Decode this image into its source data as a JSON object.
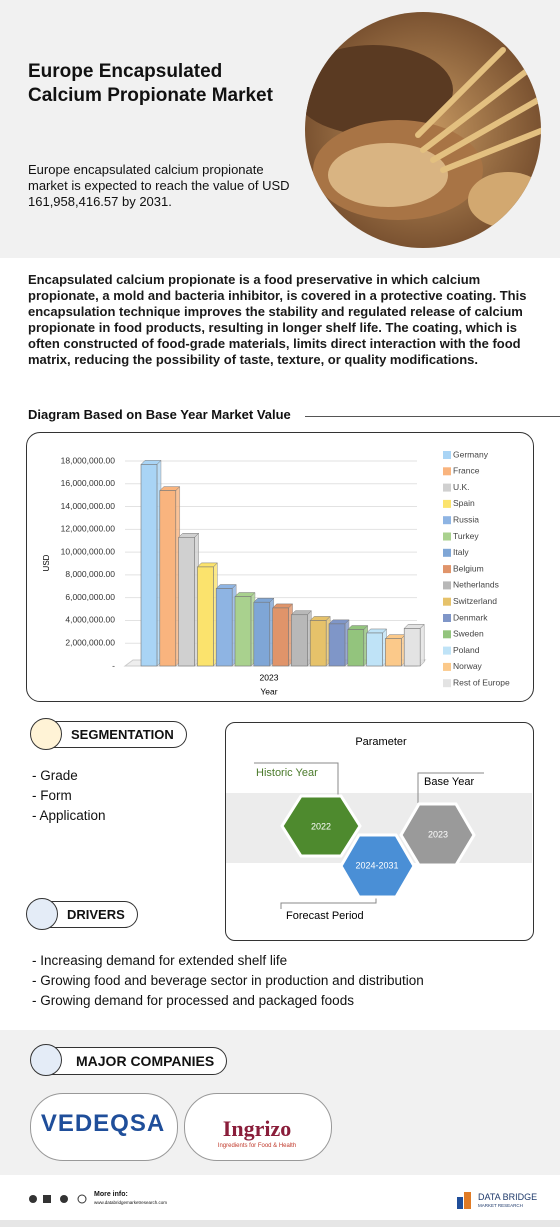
{
  "header": {
    "title": "Europe Encapsulated Calcium Propionate Market",
    "subtitle": "Europe encapsulated calcium propionate market is expected to reach the value of USD  161,958,416.57 by 2031."
  },
  "description": "Encapsulated calcium propionate is a food preservative in which calcium propionate, a mold and bacteria inhibitor, is covered in a protective coating. This encapsulation technique improves the stability and regulated release of calcium propionate in food products, resulting in longer shelf life. The coating, which is often constructed of food-grade materials, limits direct interaction with the food matrix, reducing the possibility of taste, texture, or quality modifications.",
  "chart_data": {
    "type": "bar",
    "title": "Diagram Based on Base Year Market Value",
    "x_label": "Year",
    "y_label": "USD",
    "categories": [
      "2023"
    ],
    "ylim": [
      0,
      18000000
    ],
    "yticks": [
      {
        "value": 0,
        "label": "-"
      },
      {
        "value": 2000000,
        "label": "2,000,000.00"
      },
      {
        "value": 4000000,
        "label": "4,000,000.00"
      },
      {
        "value": 6000000,
        "label": "6,000,000.00"
      },
      {
        "value": 8000000,
        "label": "8,000,000.00"
      },
      {
        "value": 10000000,
        "label": "10,000,000.00"
      },
      {
        "value": 12000000,
        "label": "12,000,000.00"
      },
      {
        "value": 14000000,
        "label": "14,000,000.00"
      },
      {
        "value": 16000000,
        "label": "16,000,000.00"
      },
      {
        "value": 18000000,
        "label": "18,000,000.00"
      }
    ],
    "grid": true,
    "legend": "right",
    "series": [
      {
        "name": "Germany",
        "color": "#a9d4f5",
        "values": [
          17700000
        ]
      },
      {
        "name": "France",
        "color": "#f9b47e",
        "values": [
          15400000
        ]
      },
      {
        "name": "U.K.",
        "color": "#d0d0d0",
        "values": [
          11300000
        ]
      },
      {
        "name": "Spain",
        "color": "#fbe36d",
        "values": [
          8700000
        ]
      },
      {
        "name": "Russia",
        "color": "#8eb4e3",
        "values": [
          6800000
        ]
      },
      {
        "name": "Turkey",
        "color": "#a9d18e",
        "values": [
          6100000
        ]
      },
      {
        "name": "Italy",
        "color": "#7fa6d6",
        "values": [
          5600000
        ]
      },
      {
        "name": "Belgium",
        "color": "#e0946a",
        "values": [
          5100000
        ]
      },
      {
        "name": "Netherlands",
        "color": "#b8b8b8",
        "values": [
          4500000
        ]
      },
      {
        "name": "Switzerland",
        "color": "#e6c26a",
        "values": [
          4000000
        ]
      },
      {
        "name": "Denmark",
        "color": "#7f96c8",
        "values": [
          3700000
        ]
      },
      {
        "name": "Sweden",
        "color": "#93c47d",
        "values": [
          3200000
        ]
      },
      {
        "name": "Poland",
        "color": "#bfe3f7",
        "values": [
          2900000
        ]
      },
      {
        "name": "Norway",
        "color": "#fbc98a",
        "values": [
          2400000
        ]
      },
      {
        "name": "Rest of Europe",
        "color": "#e3e3e3",
        "values": [
          3300000
        ]
      }
    ]
  },
  "segmentation": {
    "title": "SEGMENTATION",
    "items": [
      "Grade",
      "Form",
      "Application"
    ]
  },
  "parameter": {
    "title": "Parameter",
    "historic_label": "Historic Year",
    "historic_value": "2022",
    "base_label": "Base Year",
    "base_value": "2023",
    "forecast_label": "Forecast Period",
    "forecast_value": "2024-2031"
  },
  "drivers": {
    "title": "DRIVERS",
    "items": [
      "Increasing demand for extended shelf life",
      "Growing food and beverage sector in production and distribution",
      "Growing demand for processed and packaged foods"
    ]
  },
  "companies": {
    "title": "MAJOR COMPANIES",
    "items": [
      {
        "name": "VEDEQSA"
      },
      {
        "name": "Ingrizo",
        "tagline": "Ingredients for Food & Health"
      }
    ]
  },
  "footer": {
    "more_info": "More info:",
    "url": "www.databridgemarketresearch.com",
    "brand": "DATA BRIDGE",
    "brand_sub": "MARKET RESEARCH"
  }
}
